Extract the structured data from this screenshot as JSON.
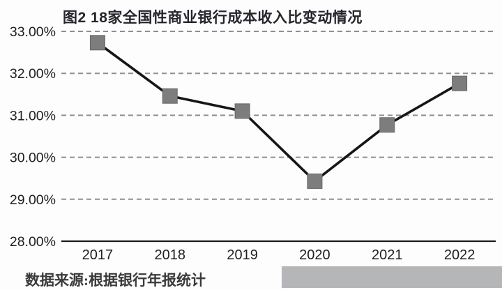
{
  "title": "图2 18家全国性商业银行成本收入比变动情况",
  "source_note": "数据来源:根据银行年报统计",
  "chart_data": {
    "type": "line",
    "title": "图2 18家全国性商业银行成本收入比变动情况",
    "categories": [
      "2017",
      "2018",
      "2019",
      "2020",
      "2021",
      "2022"
    ],
    "values": [
      32.73,
      31.46,
      31.1,
      29.43,
      30.77,
      31.76
    ],
    "series_name": "成本收入比",
    "xlabel": "",
    "ylabel": "",
    "ylim": [
      28,
      33
    ],
    "yticks": [
      33,
      32,
      31,
      30,
      29,
      28
    ],
    "ytick_labels": [
      "33.00%",
      "32.00%",
      "31.00%",
      "30.00%",
      "29.00%",
      "28.00%"
    ],
    "grid": "horizontal-dashed",
    "legend": "none",
    "marker": "square",
    "colors": {
      "line": "#161616",
      "marker_fill": "#7d7d7d",
      "marker_stroke": "#686868",
      "gridline": "#8f8f8f",
      "axis": "#1c1c1c",
      "tick_text": "#1f1f1f",
      "title_text": "#26262c",
      "source_text": "#3b3b3b",
      "footer_block": "#b4b6b8",
      "background": "#fdfdfd"
    }
  }
}
